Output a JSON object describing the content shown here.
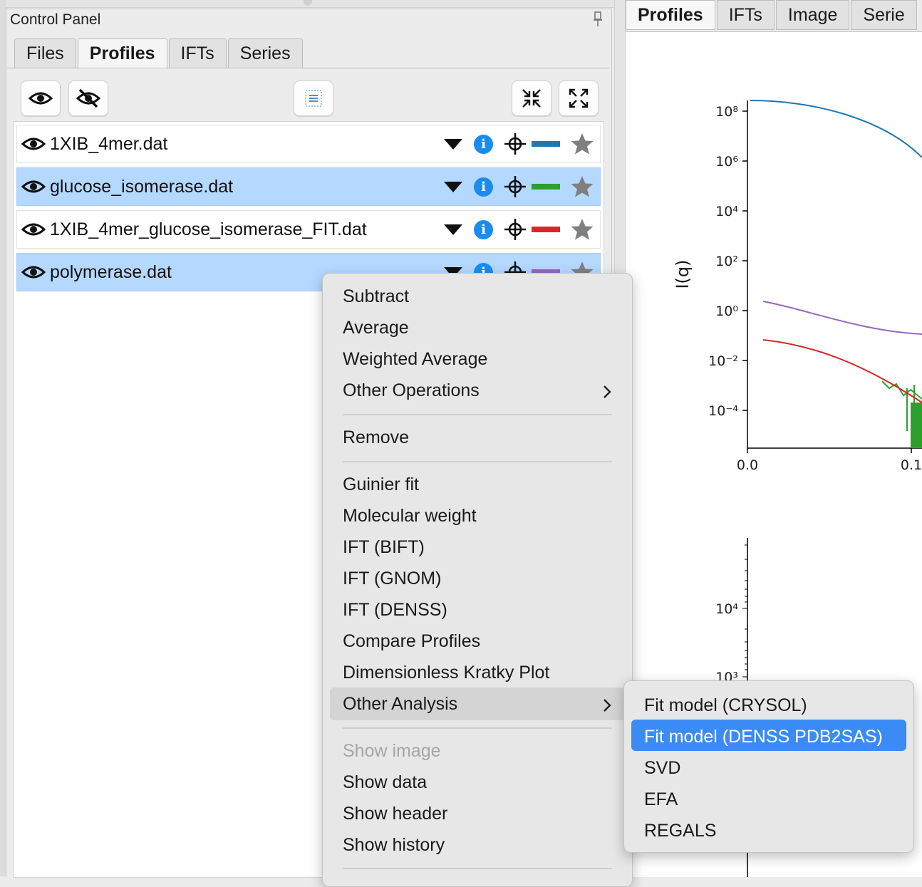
{
  "control_panel": {
    "title": "Control Panel",
    "tabs": [
      {
        "label": "Files",
        "active": false
      },
      {
        "label": "Profiles",
        "active": true
      },
      {
        "label": "IFTs",
        "active": false
      },
      {
        "label": "Series",
        "active": false
      }
    ],
    "toolbar": {
      "show_all_icon": "eye-icon",
      "hide_all_icon": "eye-slash-icon",
      "select_all_icon": "list-icon",
      "collapse_icon": "collapse-icon",
      "expand_icon": "expand-icon"
    },
    "profiles": [
      {
        "name": "1XIB_4mer.dat",
        "color": "#1f77b4",
        "selected": false
      },
      {
        "name": "glucose_isomerase.dat",
        "color": "#2ca02c",
        "selected": true
      },
      {
        "name": "1XIB_4mer_glucose_isomerase_FIT.dat",
        "color": "#d62728",
        "selected": false
      },
      {
        "name": "polymerase.dat",
        "color": "#9467bd",
        "selected": true
      }
    ]
  },
  "plot_panel": {
    "tabs": [
      "Profiles",
      "IFTs",
      "Image",
      "Serie"
    ],
    "active_tab": "Profiles",
    "top_plot": {
      "ylabel": "I(q)",
      "yticks": [
        "10⁸",
        "10⁶",
        "10⁴",
        "10²",
        "10⁰",
        "10⁻²",
        "10⁻⁴"
      ],
      "xticks": [
        "0.0",
        "0.1"
      ]
    },
    "bottom_plot": {
      "yticks": [
        "10⁴",
        "10³"
      ]
    }
  },
  "context_menu": {
    "groups": [
      [
        {
          "label": "Subtract"
        },
        {
          "label": "Average"
        },
        {
          "label": "Weighted Average"
        },
        {
          "label": "Other Operations",
          "submenu": true
        }
      ],
      [
        {
          "label": "Remove"
        }
      ],
      [
        {
          "label": "Guinier fit"
        },
        {
          "label": "Molecular weight"
        },
        {
          "label": "IFT (BIFT)"
        },
        {
          "label": "IFT (GNOM)"
        },
        {
          "label": "IFT (DENSS)"
        },
        {
          "label": "Compare Profiles"
        },
        {
          "label": "Dimensionless Kratky Plot"
        },
        {
          "label": "Other Analysis",
          "submenu": true,
          "highlighted": true
        }
      ],
      [
        {
          "label": "Show image",
          "disabled": true
        },
        {
          "label": "Show data"
        },
        {
          "label": "Show header"
        },
        {
          "label": "Show history"
        }
      ]
    ],
    "submenu": [
      {
        "label": "Fit model (CRYSOL)"
      },
      {
        "label": "Fit model (DENSS PDB2SAS)",
        "highlighted": true
      },
      {
        "label": "SVD"
      },
      {
        "label": "EFA"
      },
      {
        "label": "REGALS"
      }
    ]
  }
}
